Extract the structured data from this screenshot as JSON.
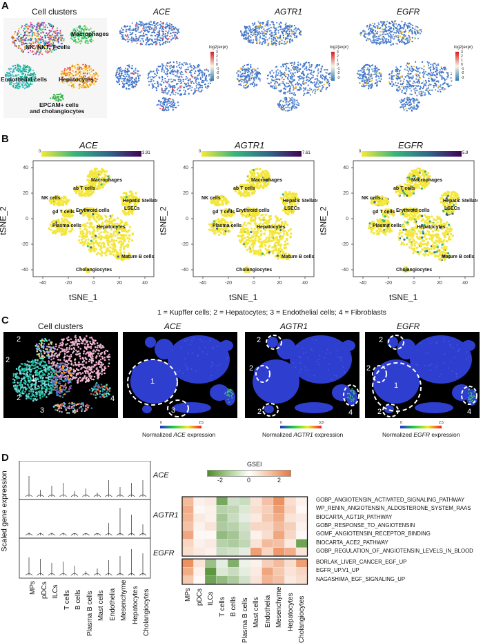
{
  "panel_a": {
    "letter": "A",
    "titles": [
      "Cell clusters",
      "ACE",
      "AGTR1",
      "EGFR"
    ],
    "cluster_labels": [
      "Macrophages",
      "NK, NKT, T cells",
      "Endothelial cells",
      "Hepatocytes",
      "EPCAM+ cells",
      "and cholangiocytes"
    ],
    "legend_title": "log2(expr)",
    "legend_ticks": [
      "3",
      "2",
      "1",
      "0",
      "-1",
      "-2",
      "-3"
    ]
  },
  "panel_b": {
    "letter": "B",
    "genes": [
      "ACE",
      "AGTR1",
      "EGFR"
    ],
    "colorbar_max": [
      "3.91",
      "7.61",
      "5.9"
    ],
    "colorbar_min": "0",
    "xlabel": "tSNE_1",
    "ylabel": "tSNE_2",
    "x_ticks": [
      "-40",
      "-20",
      "0",
      "20",
      "40"
    ],
    "y_ticks": [
      "40",
      "20",
      "0",
      "-20",
      "-40"
    ],
    "cell_labels": [
      "Macrophages",
      "ab T cells",
      "NK cells",
      "gd T cells",
      "Erythroid cells",
      "Hepatic Stellate Cells",
      "LSECs",
      "Plasma cells",
      "Hepatocytes",
      "Mature B cells",
      "Cholangiocytes"
    ]
  },
  "panel_c": {
    "letter": "C",
    "caption": "1 = Kupffer cells; 2 = Hepatocytes; 3 = Endothelial cells; 4 = Fibroblasts",
    "titles": [
      "Cell clusters",
      "ACE",
      "AGTR1",
      "EGFR"
    ],
    "legend_prefix": "Normalized",
    "legend_suffix": "expression",
    "legend_genes": [
      "ACE",
      "AGTR1",
      "EGFR"
    ],
    "scale_ticks": [
      [
        "0",
        "2.5"
      ],
      [
        "0",
        "3.8"
      ],
      [
        "0",
        "2.5"
      ]
    ],
    "cluster_numbers": [
      "2",
      "2",
      "1",
      "2",
      "3",
      "4"
    ]
  },
  "panel_d": {
    "letter": "D",
    "ylabel": "Scaled gene expression",
    "violin_genes": [
      "ACE",
      "AGTR1",
      "EGFR"
    ],
    "categories": [
      "MPs",
      "pDCs",
      "ILCs",
      "T cells",
      "B cells",
      "Plasma B cells",
      "Mast cells",
      "Endothelia",
      "Mesenchyme",
      "Hepatocytes",
      "Cholangiocytes"
    ],
    "gsei_title": "GSEI",
    "gsei_ticks": [
      "-2",
      "0",
      "2"
    ],
    "pathways": [
      "GOBP_ANGIOTENSIN_ACTIVATED_SIGNALING_PATHWAY",
      "WP_RENIN_ANGIOTENSIN_ALDOSTERONE_SYSTEM_RAAS",
      "BIOCARTA_AGT1R_PATHWAY",
      "GOBP_RESPONSE_TO_ANGIOTENSIN",
      "GOMF_ANGIOTENSIN_RECEPTOR_BINDING",
      "BIOCARTA_ACE2_PATHWAY",
      "GOBP_REGULATION_OF_ANGIOTENSIN_LEVELS_IN_BLOOD",
      "BORLAK_LIVER_CANCER_EGF_UP",
      "EGFR_UP.V1_UP",
      "NAGASHIMA_EGF_SIGNALING_UP"
    ],
    "heatmap": [
      [
        1.0,
        0.2,
        0.3,
        -1.5,
        -0.5,
        -0.6,
        0.4,
        0.9,
        1.6,
        0.5,
        0.2
      ],
      [
        1.2,
        0.1,
        0.2,
        -0.8,
        -0.7,
        -0.4,
        0.5,
        0.7,
        1.4,
        0.6,
        0.1
      ],
      [
        1.1,
        0.3,
        0.2,
        -1.0,
        -0.6,
        -0.3,
        0.3,
        0.8,
        1.2,
        0.4,
        0.3
      ],
      [
        0.9,
        0.2,
        0.4,
        -0.9,
        -0.8,
        -0.5,
        0.6,
        0.6,
        1.0,
        0.7,
        0.2
      ],
      [
        1.3,
        0.1,
        0.1,
        -1.2,
        -1.0,
        -0.6,
        0.2,
        0.5,
        1.3,
        0.6,
        0.1
      ],
      [
        0.6,
        0.2,
        0.3,
        -0.8,
        -0.9,
        -0.7,
        0.4,
        1.0,
        0.9,
        0.3,
        -1.6
      ],
      [
        0.5,
        0.3,
        0.2,
        -0.6,
        -0.5,
        -0.3,
        1.4,
        0.6,
        1.5,
        1.2,
        0.4
      ],
      [
        1.6,
        0.4,
        -1.1,
        -0.3,
        -1.4,
        -0.2,
        0.2,
        0.7,
        1.0,
        0.5,
        1.4
      ],
      [
        1.2,
        0.2,
        -1.8,
        -0.4,
        -0.6,
        -0.3,
        0.3,
        1.3,
        0.8,
        0.4,
        0.6
      ],
      [
        0.8,
        0.1,
        -1.6,
        -1.2,
        -0.9,
        -0.5,
        0.4,
        1.1,
        0.9,
        0.3,
        0.5
      ]
    ]
  },
  "colors": {
    "expr_blue": "#4472c4",
    "expr_yellow": "#f4ea3a",
    "fish_blue": "#2e3fd0",
    "heat_pos": "#e8773a",
    "heat_neg": "#5a9a32"
  }
}
